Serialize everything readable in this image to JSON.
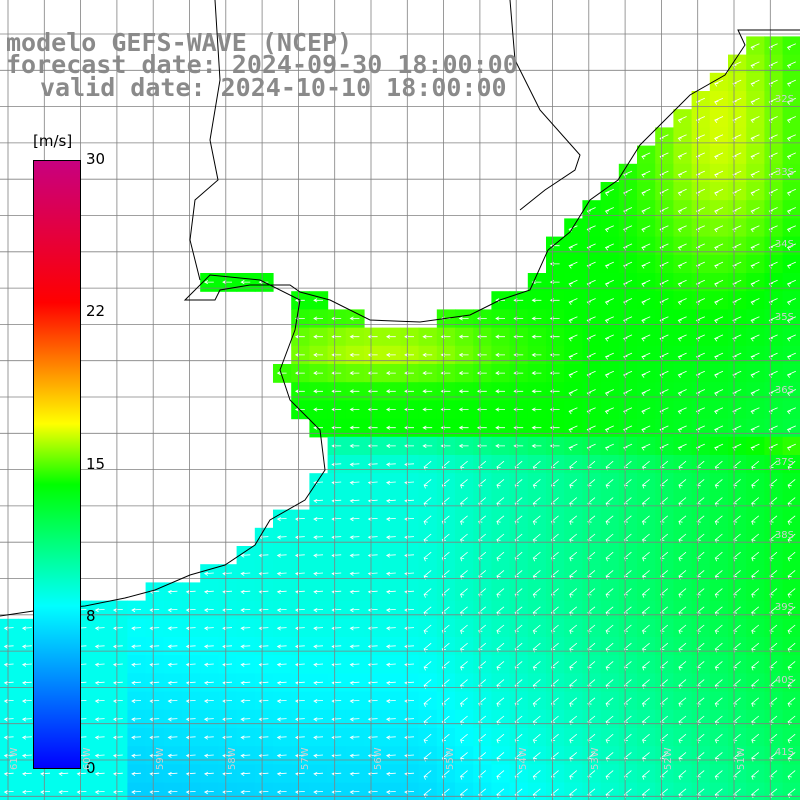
{
  "title": {
    "line1": "modelo GEFS-WAVE (NCEP)",
    "line2": "forecast date: 2024-09-30 18:00:00",
    "line3": "valid date: 2024-10-10 18:00:00"
  },
  "colorbar": {
    "unit": "[m/s]",
    "ticks": [
      "30",
      "22",
      "15",
      "8",
      "0"
    ],
    "colors": [
      "#0000ff",
      "#00ffff",
      "#00ff00",
      "#ffff00",
      "#ff0000",
      "#c8007f"
    ]
  },
  "map": {
    "background": "#ffffff",
    "grid_color": "#808080",
    "coast_color": "#000000",
    "arrow_color": "#ffffff",
    "lat_labels": [
      "32S",
      "33S",
      "34S",
      "35S",
      "36S",
      "37S",
      "38S",
      "39S",
      "40S",
      "41S"
    ],
    "lon_labels": [
      "61W",
      "60W",
      "59W",
      "58W",
      "57W",
      "56W",
      "55W",
      "54W",
      "53W",
      "52W",
      "51W"
    ]
  }
}
